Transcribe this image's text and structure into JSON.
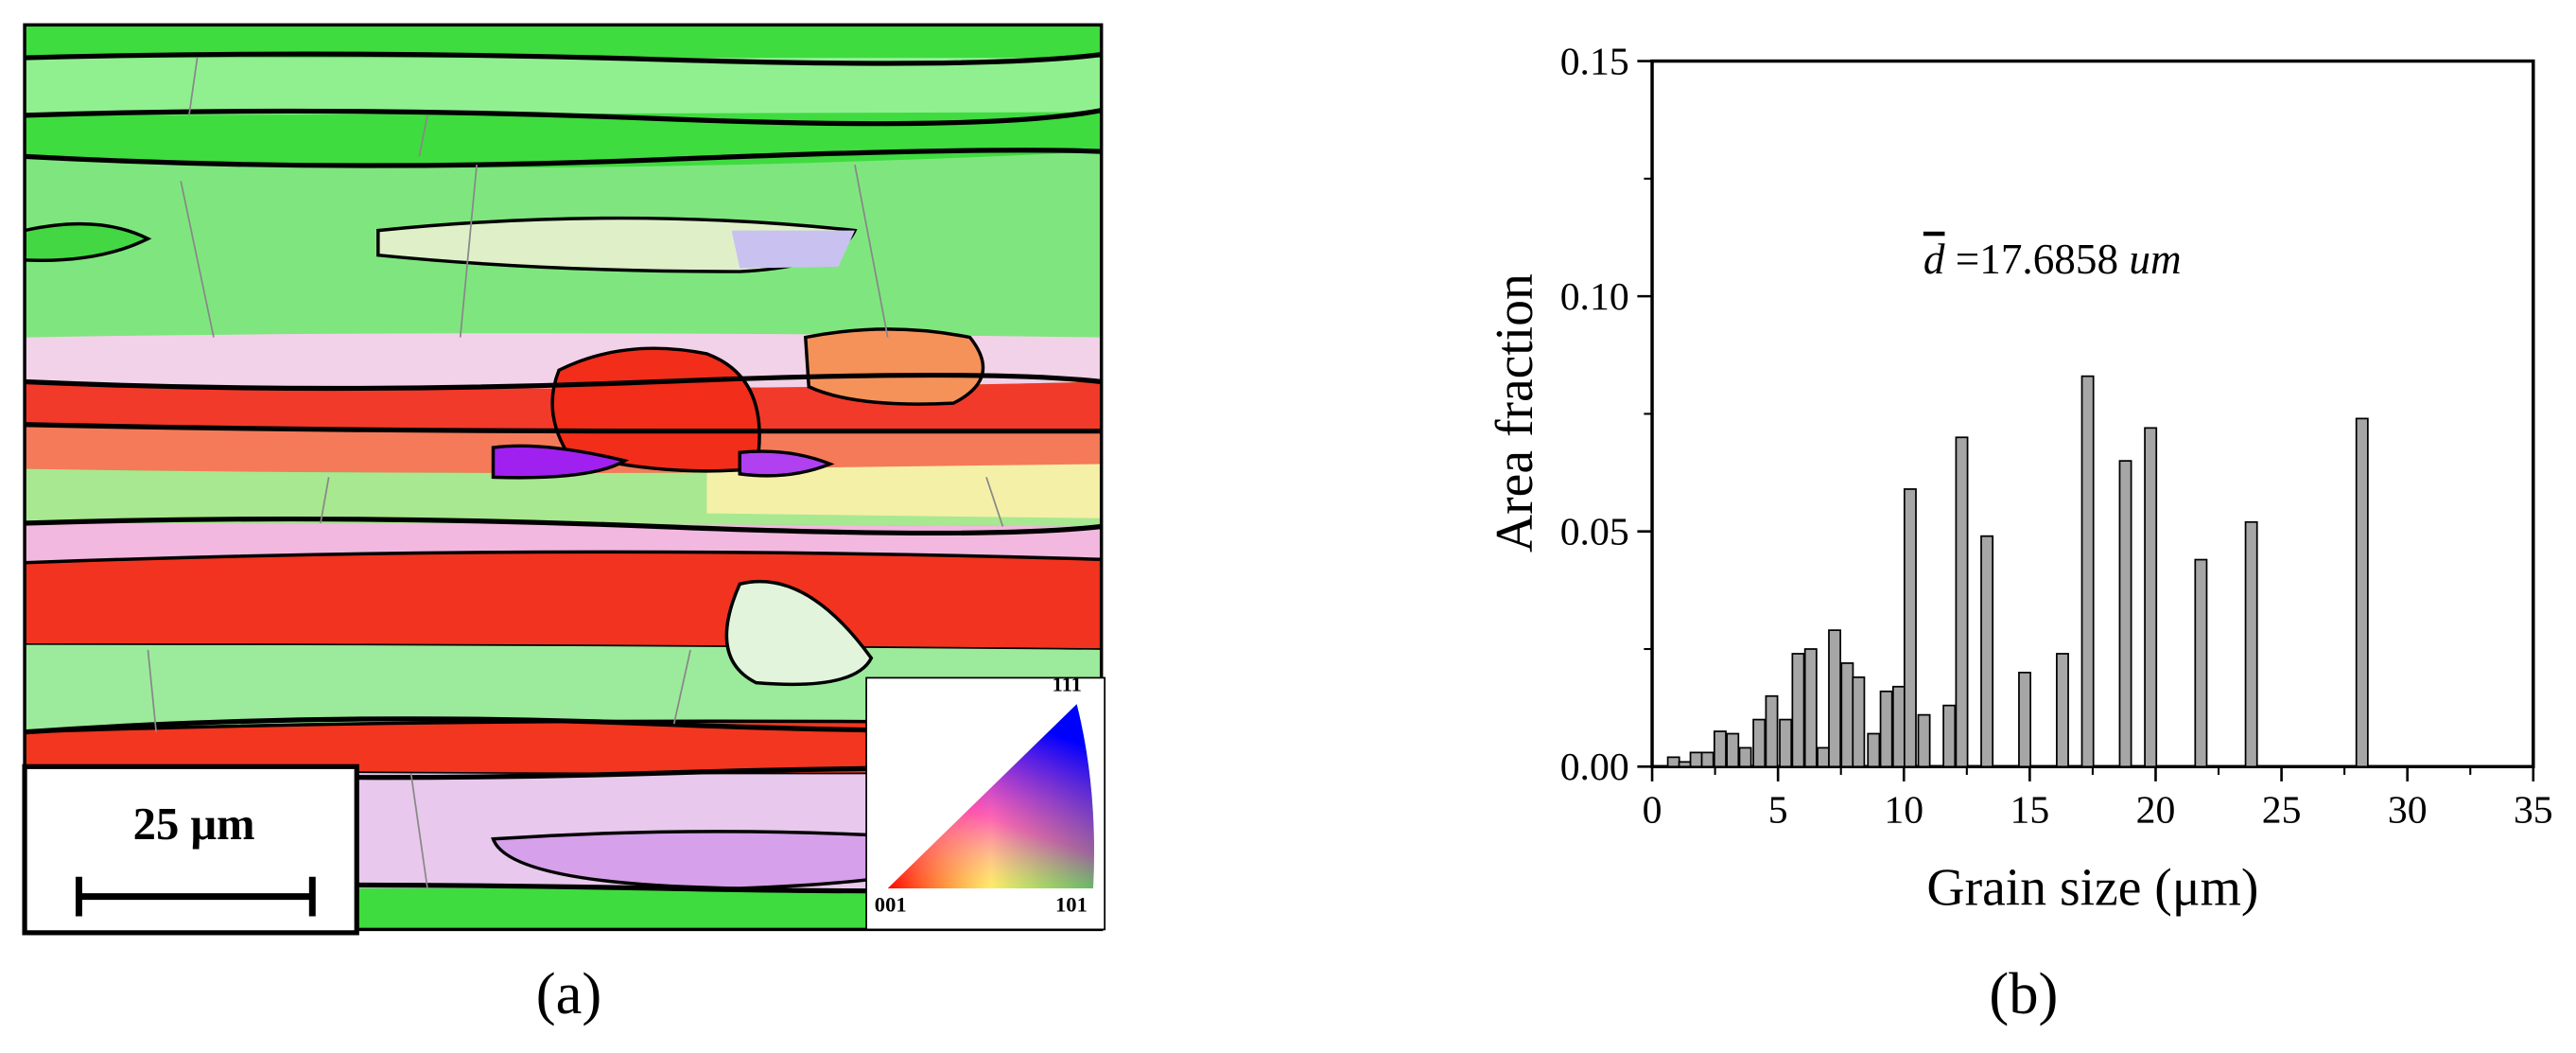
{
  "panel_a": {
    "caption": "(a)",
    "scale_bar": "25 μm",
    "ipf_labels": {
      "top": "111",
      "left": "001",
      "right": "101"
    }
  },
  "chart_data": {
    "type": "bar",
    "caption": "(b)",
    "x_label": "Grain size (μm)",
    "y_label": "Area fraction",
    "annotation": {
      "symbol": "d",
      "text": "=17.6858",
      "unit": "um"
    },
    "color": "#a6a6a6",
    "x": [
      0.85,
      1.3,
      1.75,
      2.2,
      2.7,
      3.2,
      3.7,
      4.25,
      4.75,
      5.3,
      5.8,
      6.3,
      6.8,
      7.25,
      7.75,
      8.2,
      8.8,
      9.3,
      9.8,
      10.25,
      10.8,
      11.8,
      12.3,
      13.3,
      14.8,
      16.3,
      17.3,
      18.8,
      19.8,
      21.8,
      23.8,
      28.2
    ],
    "values": [
      0.002,
      0.001,
      0.003,
      0.003,
      0.0075,
      0.007,
      0.004,
      0.01,
      0.015,
      0.01,
      0.024,
      0.025,
      0.004,
      0.029,
      0.022,
      0.019,
      0.007,
      0.016,
      0.017,
      0.059,
      0.011,
      0.013,
      0.07,
      0.049,
      0.02,
      0.024,
      0.083,
      0.065,
      0.072,
      0.044,
      0.052,
      0.074
    ],
    "xlim": [
      0,
      35
    ],
    "xticks": [
      0,
      5,
      10,
      15,
      20,
      25,
      30,
      35
    ],
    "xminorticks": [
      2.5,
      7.5,
      12.5,
      17.5,
      22.5,
      27.5,
      32.5
    ],
    "ylim": [
      0,
      0.15
    ],
    "yticks": [
      {
        "value": 0,
        "label": "0.00"
      },
      {
        "value": 0.05,
        "label": "0.05"
      },
      {
        "value": 0.1,
        "label": "0.10"
      },
      {
        "value": 0.15,
        "label": "0.15"
      }
    ],
    "yminorticks": [
      0.025,
      0.075,
      0.125
    ]
  }
}
